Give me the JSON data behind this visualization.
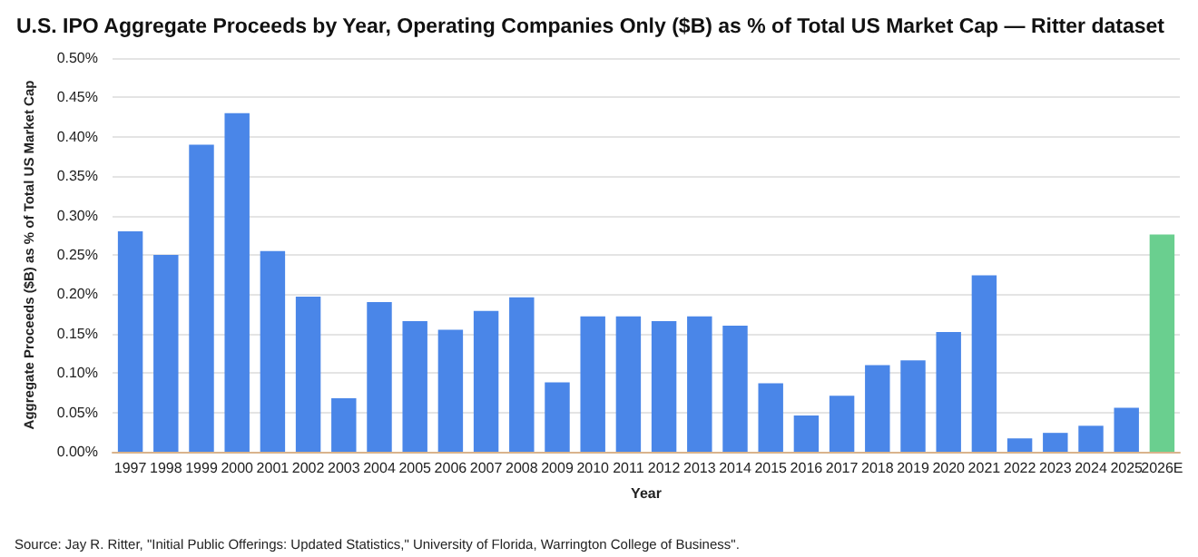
{
  "chart_data": {
    "type": "bar",
    "title": "U.S. IPO Aggregate Proceeds by Year, Operating Companies Only ($B) as % of Total US Market Cap — Ritter dataset",
    "xlabel": "Year",
    "ylabel": "Aggregate Proceeds ($B) as % of Total US Market Cap",
    "categories": [
      "1997",
      "1998",
      "1999",
      "2000",
      "2001",
      "2002",
      "2003",
      "2004",
      "2005",
      "2006",
      "2007",
      "2008",
      "2009",
      "2010",
      "2011",
      "2012",
      "2013",
      "2014",
      "2015",
      "2016",
      "2017",
      "2018",
      "2019",
      "2020",
      "2021",
      "2022",
      "2023",
      "2024",
      "2025",
      "2026E"
    ],
    "values": [
      0.28,
      0.25,
      0.39,
      0.43,
      0.255,
      0.197,
      0.068,
      0.19,
      0.166,
      0.155,
      0.179,
      0.196,
      0.088,
      0.172,
      0.172,
      0.166,
      0.172,
      0.16,
      0.087,
      0.046,
      0.071,
      0.11,
      0.116,
      0.152,
      0.224,
      0.017,
      0.024,
      0.033,
      0.056,
      0.276
    ],
    "colors": [
      "#4a86e8",
      "#4a86e8",
      "#4a86e8",
      "#4a86e8",
      "#4a86e8",
      "#4a86e8",
      "#4a86e8",
      "#4a86e8",
      "#4a86e8",
      "#4a86e8",
      "#4a86e8",
      "#4a86e8",
      "#4a86e8",
      "#4a86e8",
      "#4a86e8",
      "#4a86e8",
      "#4a86e8",
      "#4a86e8",
      "#4a86e8",
      "#4a86e8",
      "#4a86e8",
      "#4a86e8",
      "#4a86e8",
      "#4a86e8",
      "#4a86e8",
      "#4a86e8",
      "#4a86e8",
      "#4a86e8",
      "#4a86e8",
      "#6acf8f"
    ],
    "ylim": [
      0,
      0.5
    ],
    "yticks": [
      {
        "value": 0,
        "label": "0.00%"
      },
      {
        "value": 0.05,
        "label": "0.05%"
      },
      {
        "value": 0.1,
        "label": "0.10%"
      },
      {
        "value": 0.15,
        "label": "0.15%"
      },
      {
        "value": 0.2,
        "label": "0.20%"
      },
      {
        "value": 0.25,
        "label": "0.25%"
      },
      {
        "value": 0.3,
        "label": "0.30%"
      },
      {
        "value": 0.35,
        "label": "0.35%"
      },
      {
        "value": 0.4,
        "label": "0.40%"
      },
      {
        "value": 0.45,
        "label": "0.45%"
      },
      {
        "value": 0.5,
        "label": "0.50%"
      }
    ],
    "grid": "y",
    "annotations": [
      "Source: Jay R. Ritter, \"Initial Public Offerings: Updated Statistics,\" University of Florida, Warrington College of Business\"."
    ]
  }
}
